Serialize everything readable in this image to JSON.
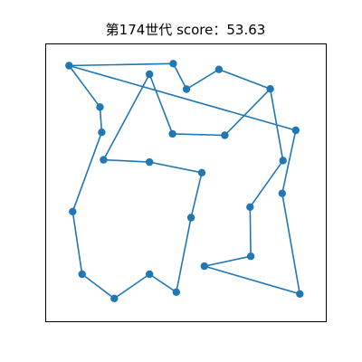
{
  "chart_data": {
    "type": "line",
    "title": "第174世代 score：53.63",
    "xlabel": "",
    "ylabel": "",
    "xlim": [
      0,
      10
    ],
    "ylim": [
      0,
      10
    ],
    "axes_visible": false,
    "grid": false,
    "closed": true,
    "marker": "circle",
    "color": "#1f77b4",
    "points": [
      {
        "x": 0.42,
        "y": 9.64
      },
      {
        "x": 4.5,
        "y": 9.72
      },
      {
        "x": 5.02,
        "y": 8.71
      },
      {
        "x": 6.29,
        "y": 9.49
      },
      {
        "x": 8.3,
        "y": 8.72
      },
      {
        "x": 6.52,
        "y": 6.88
      },
      {
        "x": 4.47,
        "y": 6.94
      },
      {
        "x": 3.57,
        "y": 9.3
      },
      {
        "x": 1.77,
        "y": 5.91
      },
      {
        "x": 3.57,
        "y": 5.82
      },
      {
        "x": 5.62,
        "y": 5.4
      },
      {
        "x": 5.2,
        "y": 3.62
      },
      {
        "x": 4.62,
        "y": 0.67
      },
      {
        "x": 3.57,
        "y": 1.38
      },
      {
        "x": 2.19,
        "y": 0.42
      },
      {
        "x": 0.93,
        "y": 1.38
      },
      {
        "x": 0.56,
        "y": 3.86
      },
      {
        "x": 1.7,
        "y": 7.0
      },
      {
        "x": 1.63,
        "y": 8.0
      },
      {
        "x": 0.42,
        "y": 9.64
      },
      {
        "x": 9.3,
        "y": 7.08
      },
      {
        "x": 8.77,
        "y": 4.58
      },
      {
        "x": 9.46,
        "y": 0.6
      },
      {
        "x": 5.72,
        "y": 1.7
      },
      {
        "x": 7.54,
        "y": 2.09
      },
      {
        "x": 7.51,
        "y": 4.04
      },
      {
        "x": 8.8,
        "y": 5.88
      },
      {
        "x": 8.3,
        "y": 8.72
      }
    ]
  }
}
